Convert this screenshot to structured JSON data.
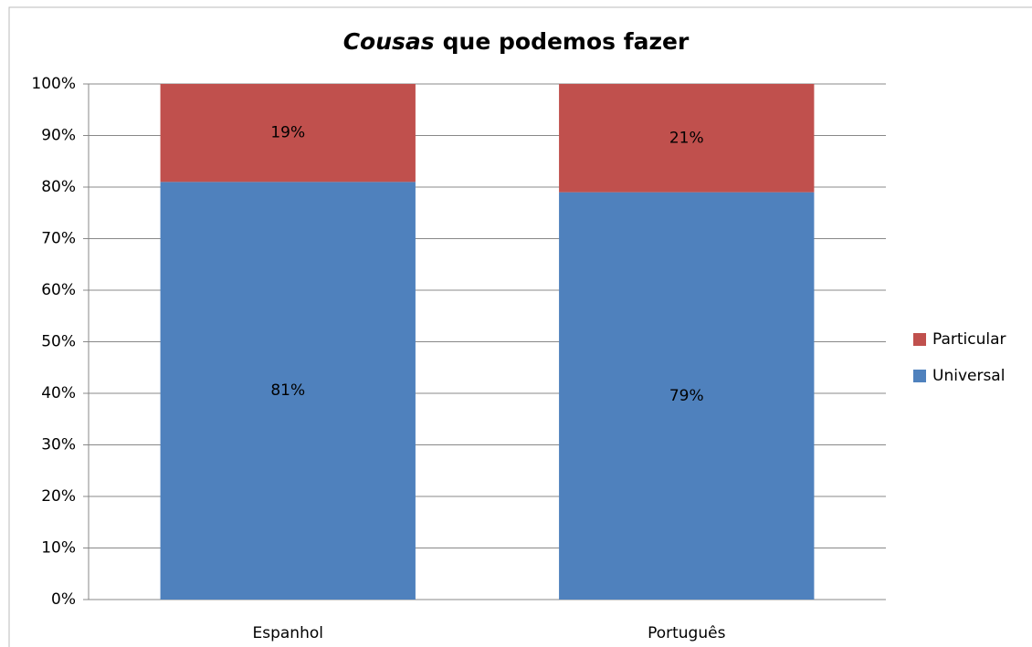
{
  "chart_data": {
    "type": "stacked_bar",
    "title": [
      "Cousas",
      "que podemos fazer"
    ],
    "categories": [
      "Espanhol",
      "Português"
    ],
    "series": [
      {
        "name": "Universal",
        "color": "#4f81bd",
        "values": [
          81,
          79
        ],
        "value_labels": [
          "81%",
          "79%"
        ]
      },
      {
        "name": "Particular",
        "color": "#c0504d",
        "values": [
          19,
          21
        ],
        "value_labels": [
          "19%",
          "21%"
        ]
      }
    ],
    "ylim": [
      0,
      100
    ],
    "yticks": [
      {
        "value": 0,
        "label": "0%"
      },
      {
        "value": 10,
        "label": "10%"
      },
      {
        "value": 20,
        "label": "20%"
      },
      {
        "value": 30,
        "label": "30%"
      },
      {
        "value": 40,
        "label": "40%"
      },
      {
        "value": 50,
        "label": "50%"
      },
      {
        "value": 60,
        "label": "60%"
      },
      {
        "value": 70,
        "label": "70%"
      },
      {
        "value": 80,
        "label": "80%"
      },
      {
        "value": 90,
        "label": "90%"
      },
      {
        "value": 100,
        "label": "100%"
      }
    ],
    "grid": true,
    "legend": "right"
  }
}
